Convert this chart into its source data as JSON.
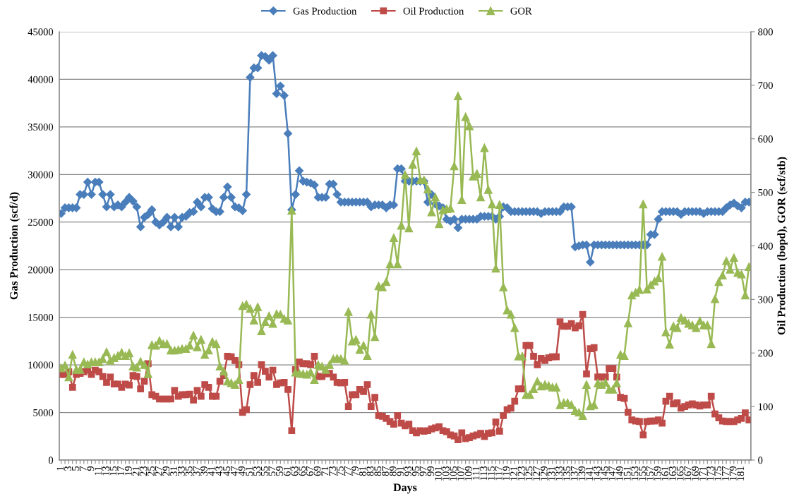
{
  "chart_data": {
    "type": "line",
    "xlabel": "Days",
    "ylabel": "Gas Production (scf/d)",
    "y2label": "Oil Production (bopd), GOR (scf/stb)",
    "categories": [
      "1",
      null,
      "3",
      null,
      "5",
      null,
      "7",
      null,
      "9",
      null,
      "11",
      null,
      "13",
      null,
      "15",
      null,
      "17",
      null,
      "19",
      null,
      "21",
      null,
      "23",
      null,
      "25",
      null,
      "27",
      null,
      "29",
      null,
      "31",
      null,
      "33",
      null,
      "35",
      null,
      "37",
      null,
      "39",
      null,
      "41",
      null,
      "43",
      null,
      "45",
      null,
      "47",
      null,
      "49",
      null,
      "51",
      null,
      "53",
      null,
      "55",
      null,
      "57",
      null,
      "59",
      null,
      "61",
      null,
      "63",
      null,
      "65",
      null,
      "67",
      null,
      "69",
      null,
      "71",
      null,
      "73",
      null,
      "75",
      null,
      "77",
      null,
      "79",
      null,
      "81",
      null,
      "83",
      null,
      "85",
      null,
      "87",
      null,
      "89",
      null,
      "91",
      null,
      "93",
      null,
      "95",
      null,
      "97",
      null,
      "99",
      null,
      "101",
      null,
      "103",
      null,
      "105",
      null,
      "107",
      null,
      "109",
      null,
      "111",
      null,
      "113",
      null,
      "115",
      null,
      "117",
      null,
      "119",
      null,
      "121",
      null,
      "123",
      null,
      "125",
      null,
      "127",
      null,
      "129",
      null,
      "131",
      null,
      "133",
      null,
      "135",
      null,
      "137",
      null,
      "139",
      null,
      "141",
      null,
      "143",
      null,
      "145",
      null,
      "147",
      null,
      "149",
      null,
      "151",
      null,
      "153",
      null,
      "155",
      null,
      "157",
      null,
      "159",
      null,
      "161",
      null,
      "163",
      null,
      "165",
      null,
      "167",
      null,
      "169",
      null,
      "171",
      null,
      "173",
      null,
      "175",
      null,
      "177",
      null,
      "179",
      null,
      "181",
      null,
      null
    ],
    "series": [
      {
        "name": "Gas Production",
        "color": "#4a7ebb",
        "marker": "diamond",
        "values": [
          25900,
          26500,
          26500,
          26500,
          26500,
          27900,
          27900,
          29200,
          27900,
          29200,
          29200,
          27900,
          26600,
          27900,
          26600,
          26800,
          26600,
          27100,
          27600,
          27200,
          26600,
          24500,
          25500,
          25800,
          26300,
          25000,
          24700,
          25000,
          25500,
          24500,
          25500,
          24500,
          25500,
          25600,
          26000,
          26100,
          27100,
          26600,
          27600,
          27600,
          26400,
          26100,
          26100,
          27600,
          28700,
          27600,
          26600,
          26500,
          26200,
          27900,
          40200,
          41200,
          41200,
          42500,
          42400,
          42000,
          42500,
          38500,
          39300,
          38300,
          34300,
          26300,
          27900,
          30400,
          29300,
          29200,
          29100,
          28900,
          27600,
          27600,
          27600,
          29000,
          29000,
          27900,
          27100,
          27100,
          27100,
          27100,
          27100,
          27100,
          27100,
          27100,
          26600,
          26800,
          26800,
          26800,
          26500,
          26800,
          26800,
          30600,
          30600,
          29300,
          29300,
          29300,
          29300,
          29300,
          29300,
          27100,
          27900,
          26900,
          26700,
          26500,
          25300,
          25100,
          25300,
          24400,
          25300,
          25300,
          25300,
          25300,
          25300,
          25600,
          25600,
          25600,
          25600,
          25300,
          25600,
          26600,
          26500,
          26100,
          26100,
          26100,
          26100,
          26100,
          26100,
          26100,
          26100,
          25900,
          26100,
          26100,
          26100,
          26100,
          26100,
          26600,
          26600,
          26600,
          22400,
          22500,
          22600,
          22600,
          20800,
          22600,
          22600,
          22600,
          22600,
          22600,
          22600,
          22600,
          22600,
          22600,
          22600,
          22600,
          22600,
          22600,
          22600,
          22600,
          23700,
          23700,
          25300,
          26100,
          26100,
          26100,
          26100,
          26100,
          25800,
          26100,
          26100,
          26100,
          26100,
          26100,
          25900,
          26100,
          26100,
          26100,
          26100,
          26100,
          26500,
          26800,
          27000,
          26700,
          26500,
          27100,
          27100
        ]
      },
      {
        "name": "Oil Production",
        "color": "#be4b48",
        "marker": "square",
        "axis": "y2",
        "values": [
          160,
          160,
          165,
          136,
          160,
          162,
          165,
          168,
          160,
          168,
          165,
          156,
          145,
          155,
          142,
          142,
          136,
          142,
          140,
          158,
          156,
          133,
          147,
          180,
          122,
          119,
          114,
          114,
          114,
          114,
          130,
          119,
          122,
          122,
          123,
          112,
          130,
          119,
          141,
          136,
          119,
          119,
          147,
          158,
          194,
          193,
          186,
          178,
          89,
          94,
          141,
          158,
          145,
          178,
          166,
          155,
          168,
          141,
          144,
          145,
          132,
          55,
          169,
          183,
          180,
          180,
          178,
          194,
          156,
          156,
          161,
          162,
          155,
          145,
          144,
          145,
          100,
          122,
          122,
          132,
          128,
          141,
          100,
          117,
          83,
          82,
          78,
          72,
          67,
          83,
          69,
          64,
          67,
          55,
          51,
          55,
          54,
          55,
          58,
          60,
          62,
          55,
          53,
          47,
          45,
          38,
          51,
          40,
          42,
          45,
          47,
          50,
          44,
          50,
          51,
          71,
          54,
          83,
          94,
          97,
          110,
          133,
          133,
          214,
          214,
          194,
          178,
          190,
          186,
          191,
          193,
          193,
          258,
          250,
          250,
          255,
          247,
          251,
          272,
          161,
          208,
          210,
          155,
          155,
          155,
          171,
          171,
          155,
          117,
          115,
          89,
          75,
          73,
          72,
          47,
          72,
          73,
          73,
          75,
          69,
          110,
          119,
          105,
          107,
          97,
          100,
          103,
          105,
          103,
          101,
          103,
          103,
          119,
          86,
          79,
          73,
          72,
          72,
          72,
          75,
          78,
          88,
          75
        ]
      },
      {
        "name": "GOR",
        "color": "#98b954",
        "marker": "triangle",
        "axis": "y2",
        "values": [
          172,
          177,
          155,
          197,
          169,
          169,
          183,
          179,
          183,
          183,
          183,
          189,
          202,
          186,
          191,
          195,
          201,
          195,
          200,
          175,
          173,
          184,
          178,
          161,
          215,
          214,
          223,
          217,
          217,
          205,
          205,
          206,
          208,
          208,
          214,
          233,
          211,
          225,
          197,
          205,
          221,
          217,
          175,
          166,
          147,
          144,
          141,
          150,
          288,
          291,
          283,
          261,
          286,
          241,
          258,
          269,
          255,
          273,
          272,
          264,
          261,
          466,
          164,
          162,
          161,
          160,
          164,
          150,
          178,
          175,
          169,
          178,
          189,
          190,
          189,
          186,
          277,
          222,
          225,
          206,
          214,
          195,
          272,
          230,
          325,
          323,
          333,
          366,
          415,
          366,
          438,
          533,
          433,
          552,
          577,
          523,
          523,
          506,
          463,
          491,
          441,
          467,
          469,
          470,
          549,
          680,
          486,
          641,
          624,
          530,
          535,
          491,
          583,
          505,
          478,
          358,
          477,
          323,
          280,
          272,
          247,
          194,
          194,
          122,
          122,
          133,
          147,
          138,
          141,
          139,
          136,
          136,
          103,
          107,
          107,
          103,
          92,
          89,
          83,
          141,
          101,
          103,
          144,
          141,
          145,
          132,
          132,
          144,
          197,
          195,
          256,
          308,
          313,
          318,
          478,
          319,
          327,
          334,
          340,
          380,
          239,
          216,
          250,
          247,
          266,
          261,
          255,
          252,
          247,
          260,
          252,
          252,
          217,
          301,
          333,
          345,
          372,
          356,
          378,
          350,
          347,
          308,
          361
        ]
      }
    ],
    "ylim": [
      0,
      45000
    ],
    "yticks": [
      0,
      5000,
      10000,
      15000,
      20000,
      25000,
      30000,
      35000,
      40000,
      45000
    ],
    "y2lim": [
      0,
      800
    ],
    "y2ticks": [
      0,
      100,
      200,
      300,
      400,
      500,
      600,
      700,
      800
    ],
    "grid": "y",
    "legend": "top",
    "line_style": "solid"
  }
}
